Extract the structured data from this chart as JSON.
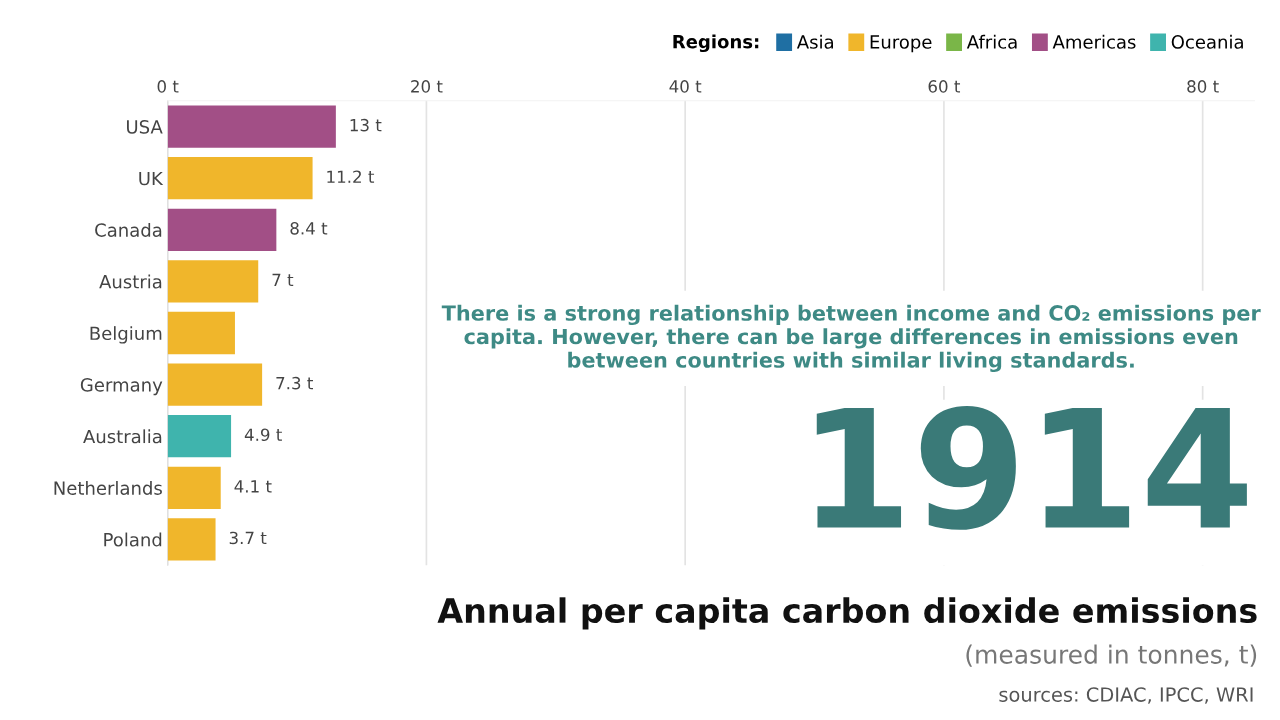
{
  "chart_data": {
    "type": "bar",
    "orientation": "horizontal",
    "title": "Annual per capita carbon dioxide emissions",
    "subtitle": "(measured in tonnes, t)",
    "legend_title": "Regions:",
    "categories": [
      "USA",
      "UK",
      "Canada",
      "Austria",
      "Belgium",
      "Germany",
      "Australia",
      "Netherlands",
      "Poland"
    ],
    "series": [
      {
        "name": "Asia",
        "color": "#1f6fa3",
        "values": [
          null,
          null,
          null,
          null,
          null,
          null,
          null,
          null,
          null
        ]
      },
      {
        "name": "Europe",
        "color": "#f0b62b",
        "values": [
          null,
          11.2,
          null,
          7,
          5.2,
          7.3,
          null,
          4.1,
          3.7
        ]
      },
      {
        "name": "Africa",
        "color": "#7ab648",
        "values": [
          null,
          null,
          null,
          null,
          null,
          null,
          null,
          null,
          null
        ]
      },
      {
        "name": "Americas",
        "color": "#a24f86",
        "values": [
          13,
          null,
          8.4,
          null,
          null,
          null,
          null,
          null,
          null
        ]
      },
      {
        "name": "Oceania",
        "color": "#3fb4ad",
        "values": [
          null,
          null,
          null,
          null,
          null,
          null,
          4.9,
          null,
          null
        ]
      }
    ],
    "value_labels": [
      "13 t",
      "11.2 t",
      "8.4 t",
      "7 t",
      null,
      "7.3 t",
      "4.9 t",
      "4.1 t",
      "3.7 t"
    ],
    "xlim": [
      0,
      84
    ],
    "xticks": [
      {
        "value": 0,
        "label": "0 t"
      },
      {
        "value": 20,
        "label": "20 t"
      },
      {
        "value": 40,
        "label": "40 t"
      },
      {
        "value": 60,
        "label": "60 t"
      },
      {
        "value": 80,
        "label": "80 t"
      }
    ],
    "grid": "x",
    "legend": "top right",
    "annotations": [
      "There is a strong relationship between income and CO₂ emissions per capita. However, there can be large differences in emissions even between countries with similar living standards.",
      "1914",
      "sources: CDIAC, IPCC, WRI"
    ]
  }
}
